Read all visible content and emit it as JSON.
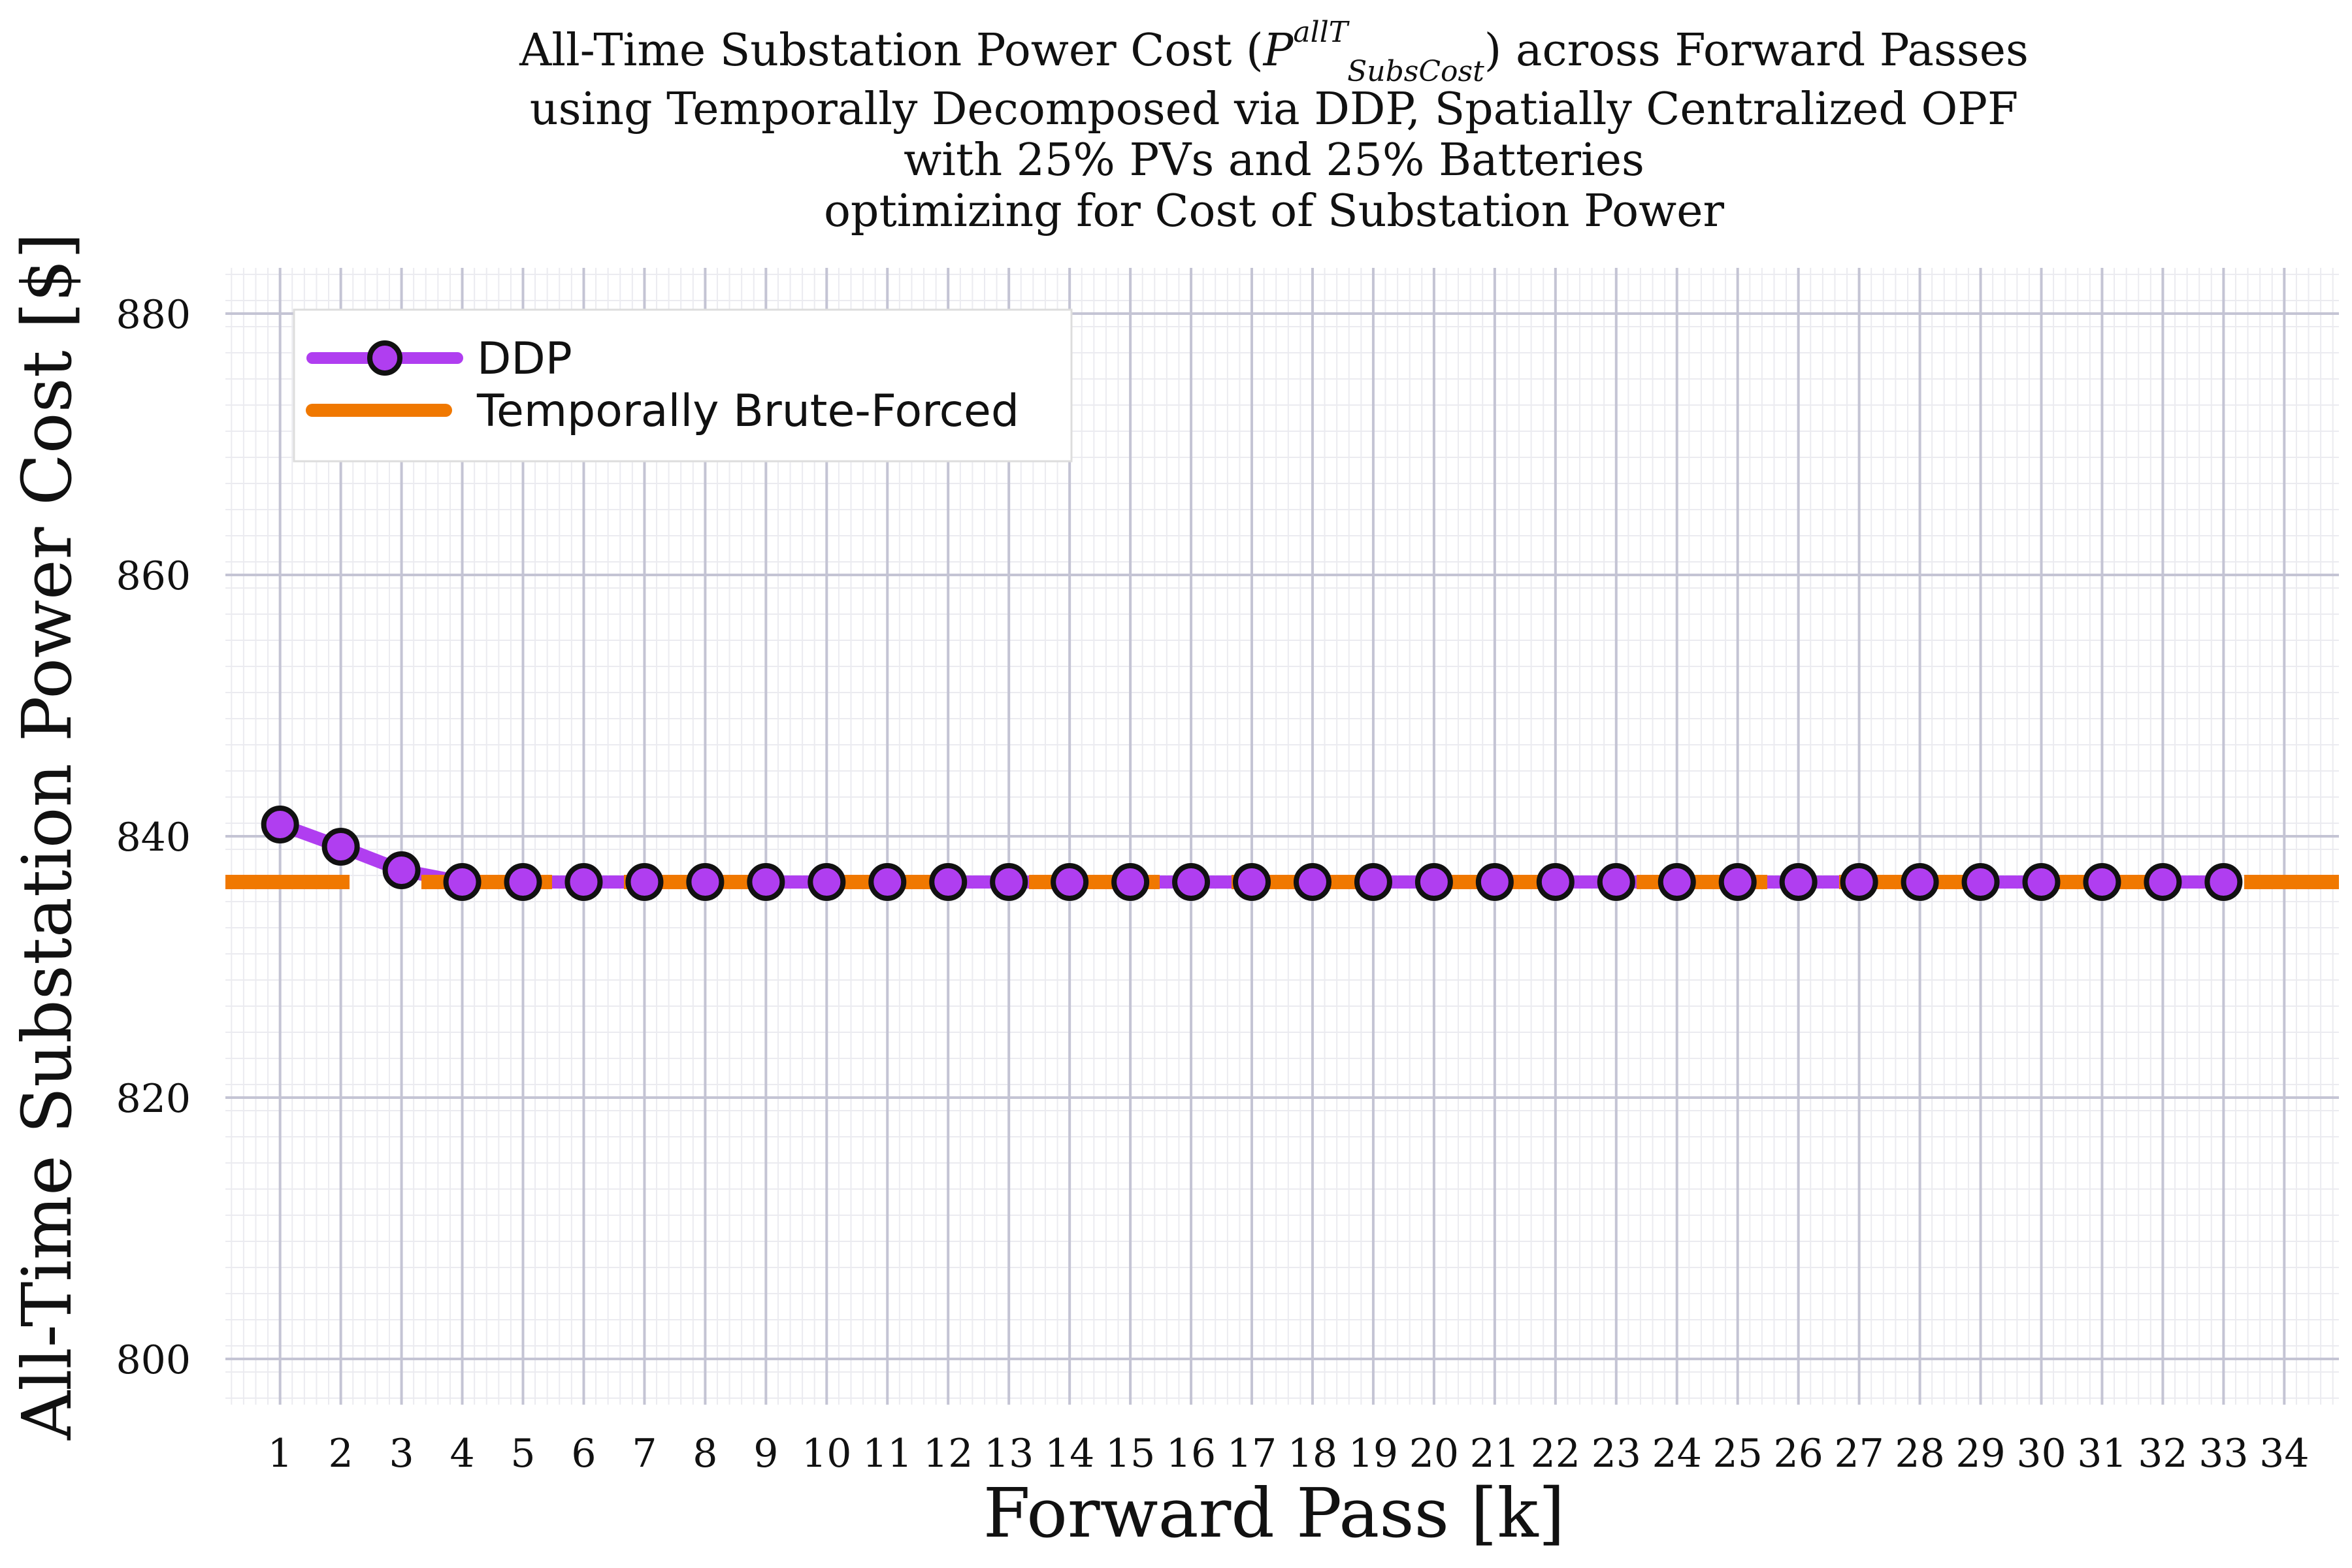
{
  "chart_data": {
    "type": "line",
    "title_lines": [
      "All-Time Substation Power Cost (P",
      "using Temporally Decomposed via DDP, Spatially Centralized OPF",
      "with 25% PVs and 25% Batteries",
      "optimizing for Cost of Substation Power"
    ],
    "title_math": {
      "base": "P",
      "superscript": "allT",
      "subscript": "SubsCost",
      "before": "All-Time Substation Power Cost (",
      "after": ") across Forward Passes"
    },
    "xlabel": "Forward Pass [k]",
    "ylabel": "All-Time Substation Power Cost [$]",
    "xlim": [
      0.1,
      34.9
    ],
    "ylim": [
      796.5,
      883.5
    ],
    "xticks": [
      1,
      2,
      3,
      4,
      5,
      6,
      7,
      8,
      9,
      10,
      11,
      12,
      13,
      14,
      15,
      16,
      17,
      18,
      19,
      20,
      21,
      22,
      23,
      24,
      25,
      26,
      27,
      28,
      29,
      30,
      31,
      32,
      33,
      34
    ],
    "yticks": [
      800,
      820,
      840,
      860,
      880
    ],
    "grid": true,
    "legend_position": "top-left",
    "series": [
      {
        "name": "DDP",
        "color": "#b03ef0",
        "marker": "circle",
        "x": [
          1,
          2,
          3,
          4,
          5,
          6,
          7,
          8,
          9,
          10,
          11,
          12,
          13,
          14,
          15,
          16,
          17,
          18,
          19,
          20,
          21,
          22,
          23,
          24,
          25,
          26,
          27,
          28,
          29,
          30,
          31,
          32,
          33
        ],
        "y": [
          840.9,
          839.2,
          837.4,
          836.5,
          836.5,
          836.5,
          836.5,
          836.5,
          836.5,
          836.5,
          836.5,
          836.5,
          836.5,
          836.5,
          836.5,
          836.5,
          836.5,
          836.5,
          836.5,
          836.5,
          836.5,
          836.5,
          836.5,
          836.5,
          836.5,
          836.5,
          836.5,
          836.5,
          836.5,
          836.5,
          836.5,
          836.5,
          836.5
        ]
      },
      {
        "name": "Temporally Brute-Forced",
        "color": "#f07800",
        "style": "dashed",
        "y": 836.5
      }
    ]
  }
}
